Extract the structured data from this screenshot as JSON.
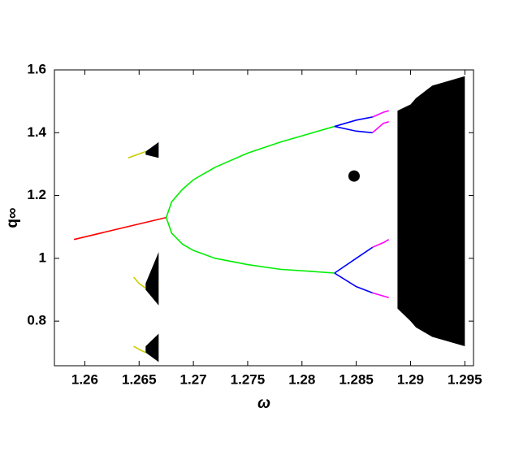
{
  "chart_data": {
    "type": "line",
    "x_label": "ω",
    "y_label": "q∞",
    "xlim": [
      1.2572,
      1.2958
    ],
    "ylim": [
      0.658,
      1.6
    ],
    "xticks": [
      1.26,
      1.265,
      1.27,
      1.275,
      1.28,
      1.285,
      1.29,
      1.295
    ],
    "yticks": [
      0.8,
      1,
      1.2,
      1.4,
      1.6
    ],
    "series": [
      {
        "color": "#ff0000",
        "x": [
          1.259,
          1.2675
        ],
        "values": [
          1.06,
          1.13
        ]
      },
      {
        "color": "#00ee00",
        "x": [
          1.2675,
          1.268,
          1.269,
          1.27,
          1.272,
          1.275,
          1.278,
          1.281,
          1.283
        ],
        "values": [
          1.13,
          1.18,
          1.22,
          1.25,
          1.29,
          1.335,
          1.37,
          1.4,
          1.42
        ]
      },
      {
        "color": "#00ee00",
        "x": [
          1.2675,
          1.268,
          1.269,
          1.27,
          1.272,
          1.275,
          1.278,
          1.281,
          1.283
        ],
        "values": [
          1.13,
          1.08,
          1.045,
          1.025,
          1.0,
          0.98,
          0.965,
          0.958,
          0.953
        ]
      },
      {
        "color": "#0000ff",
        "x": [
          1.283,
          1.285,
          1.2865
        ],
        "values": [
          1.42,
          1.44,
          1.45
        ]
      },
      {
        "color": "#0000ff",
        "x": [
          1.283,
          1.285,
          1.2865
        ],
        "values": [
          1.42,
          1.405,
          1.4
        ]
      },
      {
        "color": "#0000ff",
        "x": [
          1.283,
          1.285,
          1.2865
        ],
        "values": [
          0.953,
          1.0,
          1.035
        ]
      },
      {
        "color": "#0000ff",
        "x": [
          1.283,
          1.285,
          1.2865
        ],
        "values": [
          0.953,
          0.91,
          0.89
        ]
      },
      {
        "color": "#ff00ff",
        "x": [
          1.2865,
          1.2875,
          1.288
        ],
        "values": [
          1.45,
          1.465,
          1.47
        ]
      },
      {
        "color": "#ff00ff",
        "x": [
          1.2865,
          1.2875,
          1.288
        ],
        "values": [
          1.4,
          1.43,
          1.435
        ]
      },
      {
        "color": "#ff00ff",
        "x": [
          1.2865,
          1.2875,
          1.288
        ],
        "values": [
          1.035,
          1.05,
          1.06
        ]
      },
      {
        "color": "#ff00ff",
        "x": [
          1.2865,
          1.2875,
          1.288
        ],
        "values": [
          0.89,
          0.88,
          0.875
        ]
      },
      {
        "color": "#cccc00",
        "x": [
          1.264,
          1.2648,
          1.2656
        ],
        "values": [
          1.32,
          1.33,
          1.34
        ]
      },
      {
        "color": "#cccc00",
        "x": [
          1.2645,
          1.265,
          1.2656
        ],
        "values": [
          0.94,
          0.92,
          0.905
        ]
      },
      {
        "color": "#cccc00",
        "x": [
          1.2645,
          1.265,
          1.2656
        ],
        "values": [
          0.72,
          0.71,
          0.7
        ]
      }
    ],
    "areas": [
      {
        "color": "#000000",
        "x": [
          1.2888,
          1.29,
          1.2905,
          1.292,
          1.295
        ],
        "upper": [
          1.47,
          1.49,
          1.51,
          1.55,
          1.58
        ],
        "lower": [
          0.84,
          0.8,
          0.78,
          0.75,
          0.72
        ]
      },
      {
        "color": "#000000",
        "x": [
          1.2656,
          1.2668
        ],
        "upper": [
          1.34,
          1.37
        ],
        "lower": [
          1.33,
          1.32
        ]
      },
      {
        "color": "#000000",
        "x": [
          1.2656,
          1.2668
        ],
        "upper": [
          0.92,
          1.02
        ],
        "lower": [
          0.9,
          0.85
        ]
      },
      {
        "color": "#000000",
        "x": [
          1.2656,
          1.2668
        ],
        "upper": [
          0.72,
          0.76
        ],
        "lower": [
          0.7,
          0.67
        ]
      }
    ],
    "points": {
      "color": "#000000",
      "x": [
        1.2848
      ],
      "values": [
        1.262
      ]
    }
  }
}
